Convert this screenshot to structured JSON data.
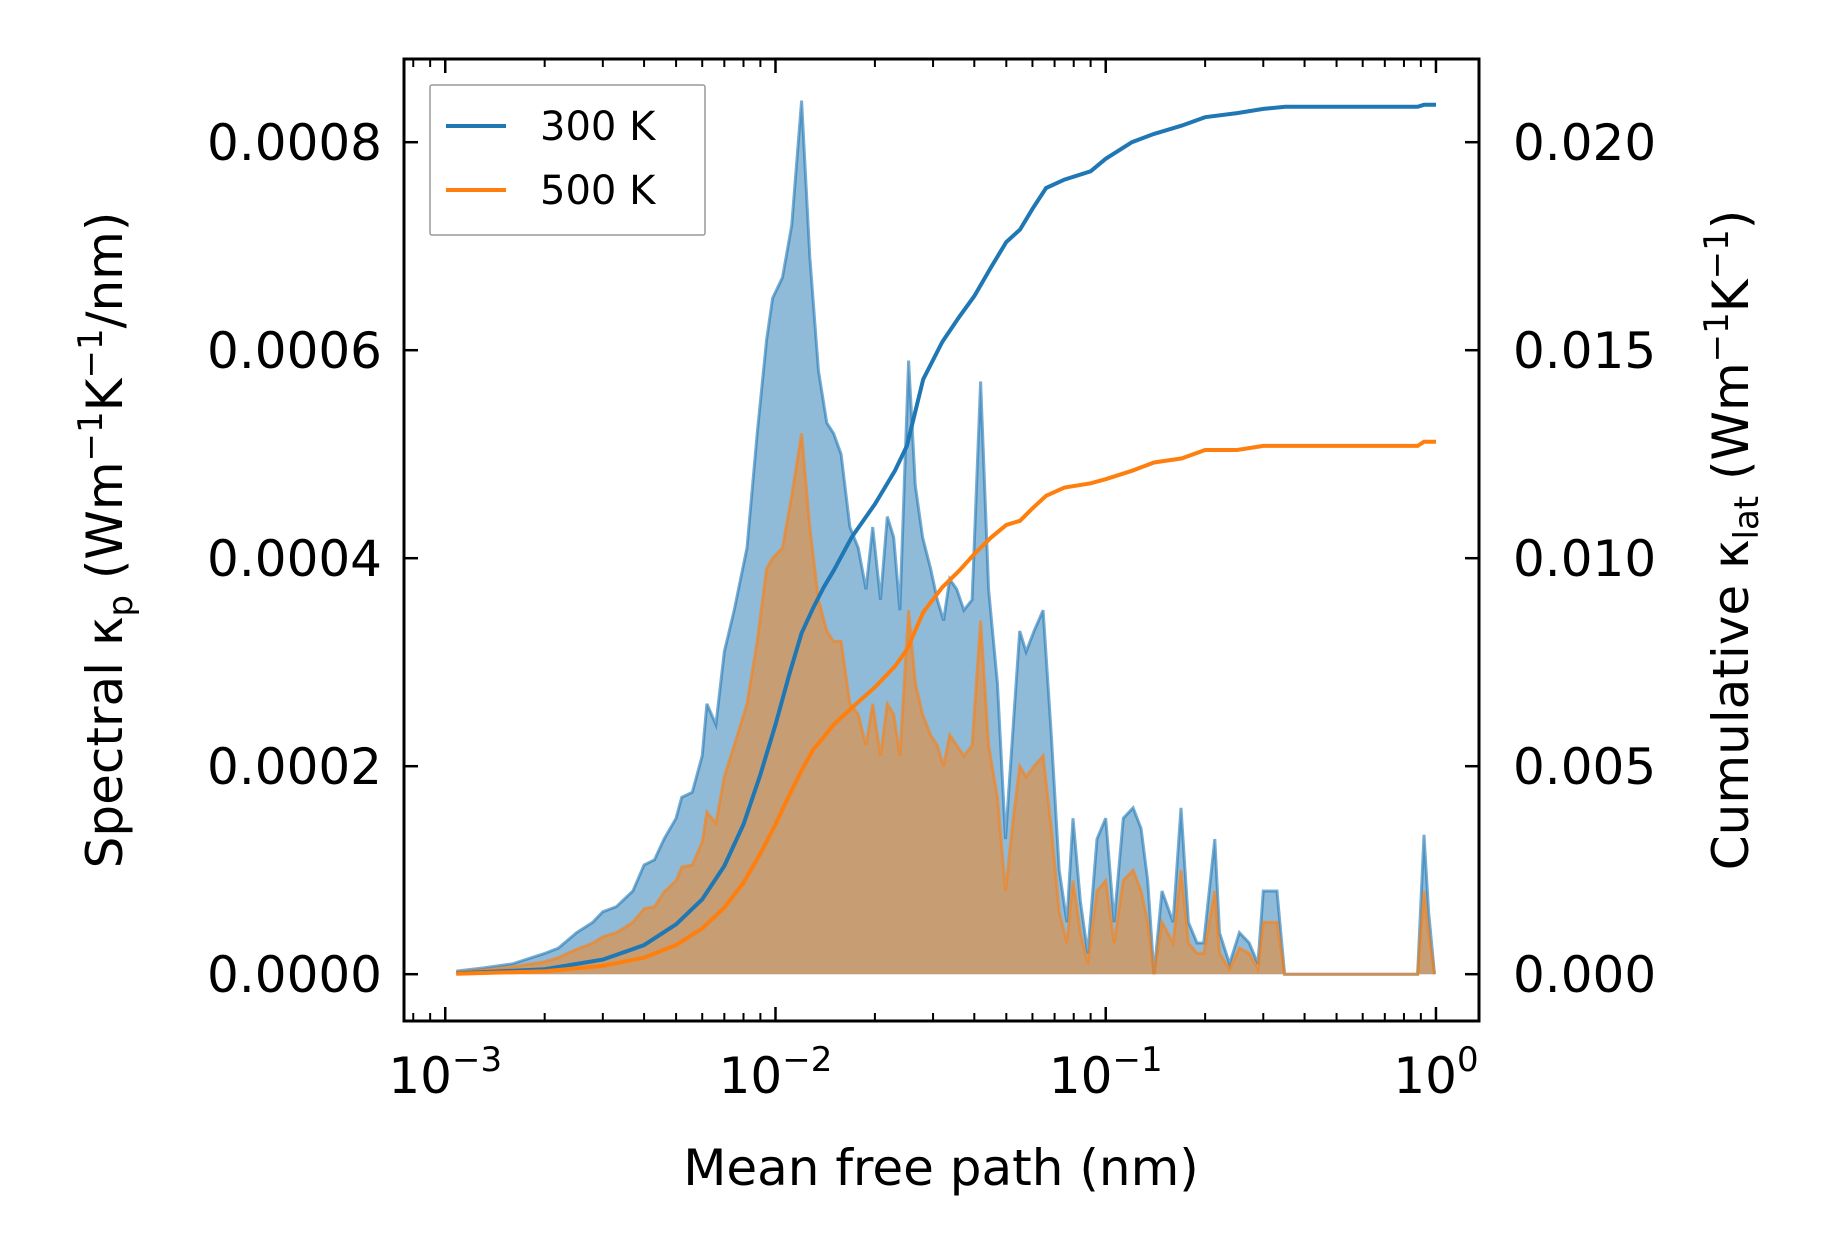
{
  "chart_data": {
    "type": "area",
    "xscale": "log",
    "xlim": [
      0.00075,
      1.35
    ],
    "ylim_left": [
      -4.5e-05,
      0.00088
    ],
    "ylim_right": [
      -0.001125,
      0.022
    ],
    "xlabel": "Mean free path (nm)",
    "ylabel_left": {
      "pre": "Spectral κ",
      "sub": "p",
      "mid": " (Wm",
      "sup1": "−1",
      "mid2": "K",
      "sup2": "−1",
      "post": "/nm)"
    },
    "ylabel_right": {
      "pre": "Cumulative κ",
      "sub": "lat",
      "mid": " (Wm",
      "sup1": "−1",
      "mid2": "K",
      "sup2": "−1",
      "post": ")"
    },
    "xticks": [
      {
        "value": 0.001,
        "base": "10",
        "exp": "−3"
      },
      {
        "value": 0.01,
        "base": "10",
        "exp": "−2"
      },
      {
        "value": 0.1,
        "base": "10",
        "exp": "−1"
      },
      {
        "value": 1,
        "base": "10",
        "exp": "0"
      }
    ],
    "yticks_left": [
      {
        "value": 0.0,
        "label": "0.0000"
      },
      {
        "value": 0.0002,
        "label": "0.0002"
      },
      {
        "value": 0.0004,
        "label": "0.0004"
      },
      {
        "value": 0.0006,
        "label": "0.0006"
      },
      {
        "value": 0.0008,
        "label": "0.0008"
      }
    ],
    "yticks_right": [
      {
        "value": 0.0,
        "label": "0.000"
      },
      {
        "value": 0.005,
        "label": "0.005"
      },
      {
        "value": 0.01,
        "label": "0.010"
      },
      {
        "value": 0.015,
        "label": "0.015"
      },
      {
        "value": 0.02,
        "label": "0.020"
      }
    ],
    "legend": {
      "position": "top-left"
    },
    "series": [
      {
        "name": "300 K",
        "color": "#1f77b4",
        "fill_color": "#1f77b4",
        "spectral": [
          [
            0.00108,
            3e-06
          ],
          [
            0.0013,
            6e-06
          ],
          [
            0.0016,
            1e-05
          ],
          [
            0.002,
            2e-05
          ],
          [
            0.0022,
            2.5e-05
          ],
          [
            0.0025,
            4e-05
          ],
          [
            0.0028,
            5e-05
          ],
          [
            0.003,
            6e-05
          ],
          [
            0.0033,
            6.5e-05
          ],
          [
            0.0037,
            8e-05
          ],
          [
            0.004,
            0.000105
          ],
          [
            0.0043,
            0.00011
          ],
          [
            0.0046,
            0.00013
          ],
          [
            0.005,
            0.00015
          ],
          [
            0.0052,
            0.00017
          ],
          [
            0.0056,
            0.000175
          ],
          [
            0.006,
            0.00021
          ],
          [
            0.0062,
            0.00026
          ],
          [
            0.0066,
            0.00024
          ],
          [
            0.007,
            0.00031
          ],
          [
            0.0075,
            0.00035
          ],
          [
            0.0082,
            0.00041
          ],
          [
            0.0088,
            0.00052
          ],
          [
            0.0094,
            0.00061
          ],
          [
            0.0098,
            0.00065
          ],
          [
            0.0105,
            0.00067
          ],
          [
            0.0112,
            0.00072
          ],
          [
            0.012,
            0.00084
          ],
          [
            0.0127,
            0.00069
          ],
          [
            0.0135,
            0.00058
          ],
          [
            0.0143,
            0.00053
          ],
          [
            0.015,
            0.00052
          ],
          [
            0.0158,
            0.0005
          ],
          [
            0.0168,
            0.00043
          ],
          [
            0.0178,
            0.00041
          ],
          [
            0.0188,
            0.00037
          ],
          [
            0.0197,
            0.00043
          ],
          [
            0.0208,
            0.00036
          ],
          [
            0.0218,
            0.00044
          ],
          [
            0.0228,
            0.00042
          ],
          [
            0.0238,
            0.00035
          ],
          [
            0.0253,
            0.00059
          ],
          [
            0.0265,
            0.00047
          ],
          [
            0.0279,
            0.00042
          ],
          [
            0.0295,
            0.00039
          ],
          [
            0.0309,
            0.00036
          ],
          [
            0.0323,
            0.00034
          ],
          [
            0.0337,
            0.00038
          ],
          [
            0.0354,
            0.00037
          ],
          [
            0.0372,
            0.00035
          ],
          [
            0.0394,
            0.00036
          ],
          [
            0.0418,
            0.00057
          ],
          [
            0.0442,
            0.00037
          ],
          [
            0.047,
            0.00028
          ],
          [
            0.0497,
            0.00013
          ],
          [
            0.0525,
            0.00024
          ],
          [
            0.0549,
            0.00033
          ],
          [
            0.0574,
            0.00031
          ],
          [
            0.0607,
            0.00033
          ],
          [
            0.0646,
            0.00035
          ],
          [
            0.0684,
            0.00023
          ],
          [
            0.0723,
            0.0001
          ],
          [
            0.0763,
            5e-05
          ],
          [
            0.0796,
            0.00015
          ],
          [
            0.0838,
            7e-05
          ],
          [
            0.0882,
            2e-05
          ],
          [
            0.0941,
            0.00013
          ],
          [
            0.1,
            0.00015
          ],
          [
            0.106,
            5e-05
          ],
          [
            0.113,
            0.00015
          ],
          [
            0.121,
            0.00016
          ],
          [
            0.128,
            0.00014
          ],
          [
            0.134,
            9e-05
          ],
          [
            0.14,
            0.0
          ],
          [
            0.148,
            8e-05
          ],
          [
            0.16,
            5e-05
          ],
          [
            0.169,
            0.00016
          ],
          [
            0.178,
            5e-05
          ],
          [
            0.189,
            3e-05
          ],
          [
            0.198,
            3e-05
          ],
          [
            0.214,
            0.00013
          ],
          [
            0.221,
            4e-05
          ],
          [
            0.237,
            1e-05
          ],
          [
            0.254,
            4e-05
          ],
          [
            0.272,
            3e-05
          ],
          [
            0.289,
            1e-05
          ],
          [
            0.3,
            8e-05
          ],
          [
            0.33,
            8e-05
          ],
          [
            0.348,
            0.0
          ],
          [
            0.88,
            0.0
          ],
          [
            0.92,
            0.000134
          ],
          [
            0.95,
            6e-05
          ],
          [
            0.99,
            0.0
          ]
        ],
        "cumulative": [
          [
            0.00108,
            2e-05
          ],
          [
            0.002,
            0.00012
          ],
          [
            0.003,
            0.00035
          ],
          [
            0.004,
            0.0007
          ],
          [
            0.005,
            0.0012
          ],
          [
            0.006,
            0.0018
          ],
          [
            0.007,
            0.0026
          ],
          [
            0.008,
            0.0036
          ],
          [
            0.009,
            0.0048
          ],
          [
            0.01,
            0.006
          ],
          [
            0.011,
            0.0072
          ],
          [
            0.012,
            0.0082
          ],
          [
            0.013,
            0.0088
          ],
          [
            0.014,
            0.0093
          ],
          [
            0.015,
            0.0097
          ],
          [
            0.017,
            0.0105
          ],
          [
            0.02,
            0.0113
          ],
          [
            0.023,
            0.0121
          ],
          [
            0.025,
            0.0127
          ],
          [
            0.028,
            0.0143
          ],
          [
            0.032,
            0.0152
          ],
          [
            0.036,
            0.0158
          ],
          [
            0.04,
            0.0163
          ],
          [
            0.045,
            0.017
          ],
          [
            0.05,
            0.0176
          ],
          [
            0.055,
            0.0179
          ],
          [
            0.06,
            0.0184
          ],
          [
            0.066,
            0.0189
          ],
          [
            0.075,
            0.0191
          ],
          [
            0.09,
            0.0193
          ],
          [
            0.1,
            0.0196
          ],
          [
            0.12,
            0.02
          ],
          [
            0.14,
            0.0202
          ],
          [
            0.17,
            0.0204
          ],
          [
            0.2,
            0.0206
          ],
          [
            0.25,
            0.0207
          ],
          [
            0.3,
            0.0208
          ],
          [
            0.35,
            0.02085
          ],
          [
            0.88,
            0.02085
          ],
          [
            0.92,
            0.0209
          ],
          [
            1.0,
            0.0209
          ]
        ]
      },
      {
        "name": "500 K",
        "color": "#ff7f0e",
        "fill_color": "#ff7f0e",
        "spectral": [
          [
            0.00108,
            2e-06
          ],
          [
            0.0013,
            4e-06
          ],
          [
            0.0016,
            7e-06
          ],
          [
            0.002,
            1.2e-05
          ],
          [
            0.0022,
            1.6e-05
          ],
          [
            0.0025,
            2.4e-05
          ],
          [
            0.0028,
            3e-05
          ],
          [
            0.003,
            3.6e-05
          ],
          [
            0.0033,
            4e-05
          ],
          [
            0.0037,
            5e-05
          ],
          [
            0.004,
            6.3e-05
          ],
          [
            0.0043,
            6.5e-05
          ],
          [
            0.0046,
            7.9e-05
          ],
          [
            0.005,
            9e-05
          ],
          [
            0.0052,
            0.000103
          ],
          [
            0.0056,
            0.000105
          ],
          [
            0.006,
            0.000127
          ],
          [
            0.0062,
            0.000156
          ],
          [
            0.0066,
            0.000145
          ],
          [
            0.007,
            0.00019
          ],
          [
            0.0075,
            0.00022
          ],
          [
            0.0082,
            0.00026
          ],
          [
            0.0088,
            0.00032
          ],
          [
            0.0094,
            0.00039
          ],
          [
            0.0098,
            0.0004
          ],
          [
            0.0105,
            0.00041
          ],
          [
            0.0112,
            0.00046
          ],
          [
            0.012,
            0.00052
          ],
          [
            0.0127,
            0.00043
          ],
          [
            0.0135,
            0.00036
          ],
          [
            0.0143,
            0.00033
          ],
          [
            0.015,
            0.00032
          ],
          [
            0.0158,
            0.00032
          ],
          [
            0.0168,
            0.00026
          ],
          [
            0.0178,
            0.00025
          ],
          [
            0.0188,
            0.00022
          ],
          [
            0.0197,
            0.00026
          ],
          [
            0.0208,
            0.00021
          ],
          [
            0.0218,
            0.00026
          ],
          [
            0.0228,
            0.00025
          ],
          [
            0.0238,
            0.00021
          ],
          [
            0.0253,
            0.00035
          ],
          [
            0.0265,
            0.00028
          ],
          [
            0.0279,
            0.00025
          ],
          [
            0.0295,
            0.00023
          ],
          [
            0.0309,
            0.00022
          ],
          [
            0.0323,
            0.0002
          ],
          [
            0.0337,
            0.00023
          ],
          [
            0.0354,
            0.00022
          ],
          [
            0.0372,
            0.00021
          ],
          [
            0.0394,
            0.00022
          ],
          [
            0.0418,
            0.00034
          ],
          [
            0.0442,
            0.00022
          ],
          [
            0.047,
            0.00017
          ],
          [
            0.0497,
            8e-05
          ],
          [
            0.0525,
            0.00015
          ],
          [
            0.0549,
            0.0002
          ],
          [
            0.0574,
            0.00019
          ],
          [
            0.0607,
            0.0002
          ],
          [
            0.0646,
            0.00021
          ],
          [
            0.0684,
            0.00014
          ],
          [
            0.0723,
            6e-05
          ],
          [
            0.0763,
            3e-05
          ],
          [
            0.0796,
            9e-05
          ],
          [
            0.0838,
            4e-05
          ],
          [
            0.0882,
            1e-05
          ],
          [
            0.0941,
            8e-05
          ],
          [
            0.1,
            9e-05
          ],
          [
            0.106,
            3e-05
          ],
          [
            0.113,
            9e-05
          ],
          [
            0.121,
            0.0001
          ],
          [
            0.128,
            8e-05
          ],
          [
            0.134,
            5e-05
          ],
          [
            0.14,
            0.0
          ],
          [
            0.148,
            5e-05
          ],
          [
            0.16,
            3e-05
          ],
          [
            0.169,
            0.0001
          ],
          [
            0.178,
            3e-05
          ],
          [
            0.189,
            2e-05
          ],
          [
            0.198,
            2e-05
          ],
          [
            0.214,
            8e-05
          ],
          [
            0.221,
            2e-05
          ],
          [
            0.237,
            5e-06
          ],
          [
            0.254,
            2.5e-05
          ],
          [
            0.272,
            2e-05
          ],
          [
            0.289,
            5e-06
          ],
          [
            0.3,
            5e-05
          ],
          [
            0.33,
            5e-05
          ],
          [
            0.348,
            0.0
          ],
          [
            0.88,
            0.0
          ],
          [
            0.92,
            8e-05
          ],
          [
            0.95,
            4e-05
          ],
          [
            0.99,
            0.0
          ]
        ],
        "cumulative": [
          [
            0.00108,
            1e-05
          ],
          [
            0.002,
            7e-05
          ],
          [
            0.003,
            0.0002
          ],
          [
            0.004,
            0.0004
          ],
          [
            0.005,
            0.0007
          ],
          [
            0.006,
            0.0011
          ],
          [
            0.007,
            0.0016
          ],
          [
            0.008,
            0.0022
          ],
          [
            0.009,
            0.0029
          ],
          [
            0.01,
            0.0036
          ],
          [
            0.011,
            0.0043
          ],
          [
            0.012,
            0.0049
          ],
          [
            0.013,
            0.0054
          ],
          [
            0.014,
            0.0057
          ],
          [
            0.015,
            0.006
          ],
          [
            0.017,
            0.0064
          ],
          [
            0.02,
            0.0069
          ],
          [
            0.023,
            0.0074
          ],
          [
            0.025,
            0.0078
          ],
          [
            0.028,
            0.0087
          ],
          [
            0.032,
            0.0093
          ],
          [
            0.036,
            0.0097
          ],
          [
            0.04,
            0.0101
          ],
          [
            0.045,
            0.0105
          ],
          [
            0.05,
            0.0108
          ],
          [
            0.055,
            0.0109
          ],
          [
            0.06,
            0.0112
          ],
          [
            0.066,
            0.0115
          ],
          [
            0.075,
            0.0117
          ],
          [
            0.09,
            0.0118
          ],
          [
            0.1,
            0.0119
          ],
          [
            0.12,
            0.0121
          ],
          [
            0.14,
            0.0123
          ],
          [
            0.17,
            0.0124
          ],
          [
            0.2,
            0.0126
          ],
          [
            0.25,
            0.0126
          ],
          [
            0.3,
            0.0127
          ],
          [
            0.35,
            0.0127
          ],
          [
            0.88,
            0.0127
          ],
          [
            0.92,
            0.0128
          ],
          [
            1.0,
            0.0128
          ]
        ]
      }
    ]
  }
}
